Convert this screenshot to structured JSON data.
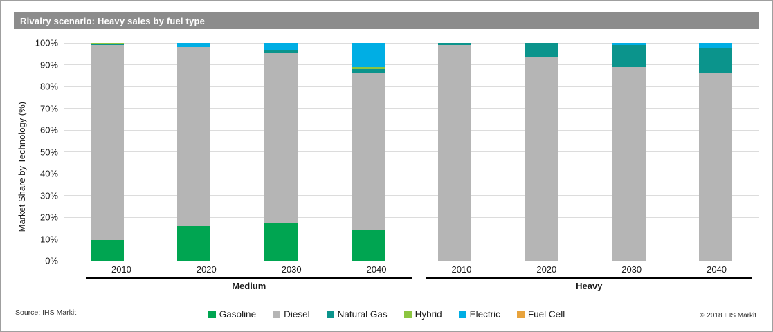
{
  "title": "Rivalry scenario: Heavy sales by fuel type",
  "source_note": "Source: IHS Markit",
  "copyright": "© 2018 IHS Markit",
  "colors": {
    "title_bar": "#8c8c8c",
    "gridline": "#dcdcdc",
    "group_line": "#000000"
  },
  "chart_data": {
    "type": "bar",
    "stacked": true,
    "title": "Rivalry scenario: Heavy sales by fuel type",
    "ylabel": "Market Share by Technology (%)",
    "xlabel": "",
    "ylim": [
      0,
      100
    ],
    "grid": true,
    "legend_position": "bottom",
    "yticks": [
      "100%",
      "90%",
      "80%",
      "70%",
      "60%",
      "50%",
      "40%",
      "30%",
      "20%",
      "10%",
      "0%"
    ],
    "groups": [
      {
        "label": "Medium",
        "categories": [
          "2010",
          "2020",
          "2030",
          "2040"
        ]
      },
      {
        "label": "Heavy",
        "categories": [
          "2010",
          "2020",
          "2030",
          "2040"
        ]
      }
    ],
    "series": [
      {
        "name": "Gasoline",
        "color": "#00a551",
        "values": [
          9.5,
          16,
          17,
          14,
          0,
          0,
          0,
          0
        ]
      },
      {
        "name": "Diesel",
        "color": "#b5b5b5",
        "values": [
          89.5,
          82,
          78.7,
          72.5,
          99.2,
          93.5,
          89,
          86
        ]
      },
      {
        "name": "Natural Gas",
        "color": "#0b948c",
        "values": [
          0.3,
          0,
          0.8,
          1.5,
          0.8,
          6.5,
          10.2,
          11.5
        ]
      },
      {
        "name": "Hybrid",
        "color": "#8cc540",
        "values": [
          0.7,
          0,
          0,
          1,
          0,
          0,
          0,
          0
        ]
      },
      {
        "name": "Electric",
        "color": "#00aee4",
        "values": [
          0,
          2,
          3.5,
          11,
          0,
          0,
          0.8,
          2.5
        ]
      },
      {
        "name": "Fuel Cell",
        "color": "#e8a33c",
        "values": [
          0,
          0,
          0,
          0,
          0,
          0,
          0,
          0
        ]
      }
    ]
  }
}
